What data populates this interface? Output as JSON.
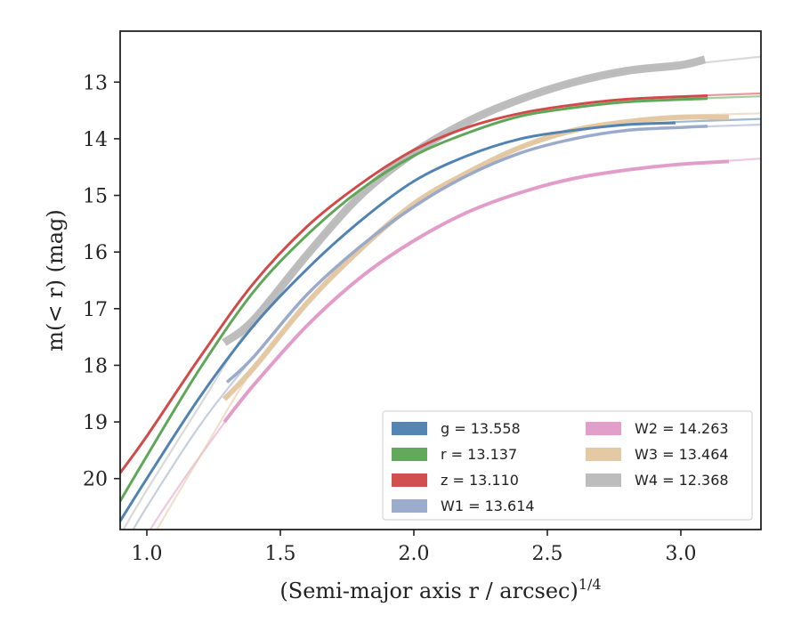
{
  "chart_data": {
    "type": "line",
    "title": "",
    "xlabel_main": "(Semi-major axis r / arcsec)",
    "xlabel_sup": "1/4",
    "ylabel": "m(< r) (mag)",
    "xlim": [
      0.9,
      3.3
    ],
    "ylim": [
      20.9,
      12.1
    ],
    "y_inverted": true,
    "grid": false,
    "legend_placement": "lower-right",
    "xticks": [
      1.0,
      1.5,
      2.0,
      2.5,
      3.0
    ],
    "xtick_labels": [
      "1.0",
      "1.5",
      "2.0",
      "2.5",
      "3.0"
    ],
    "yticks": [
      13,
      14,
      15,
      16,
      17,
      18,
      19,
      20
    ],
    "ytick_labels": [
      "13",
      "14",
      "15",
      "16",
      "17",
      "18",
      "19",
      "20"
    ],
    "series": [
      {
        "name": "g = 13.558",
        "color": "#4c7faf",
        "thin_x": [
          0.9,
          1.0,
          1.2,
          1.4,
          1.6,
          1.8,
          2.0,
          2.2,
          2.4,
          2.6,
          2.8,
          3.0,
          3.3
        ],
        "thin_y": [
          20.75,
          20.0,
          18.55,
          17.3,
          16.3,
          15.45,
          14.75,
          14.3,
          14.0,
          13.85,
          13.75,
          13.7,
          13.65
        ],
        "thick_x": [
          0.9,
          1.0,
          1.2,
          1.4,
          1.6,
          1.8,
          2.0,
          2.2,
          2.4,
          2.6,
          2.8,
          2.98
        ],
        "thick_y": [
          20.75,
          20.0,
          18.55,
          17.3,
          16.3,
          15.45,
          14.75,
          14.3,
          14.0,
          13.85,
          13.75,
          13.72
        ]
      },
      {
        "name": "r = 13.137",
        "color": "#5ba454",
        "thin_x": [
          0.9,
          1.0,
          1.2,
          1.4,
          1.6,
          1.8,
          2.0,
          2.2,
          2.4,
          2.6,
          2.8,
          3.0,
          3.3
        ],
        "thin_y": [
          20.4,
          19.6,
          18.05,
          16.7,
          15.7,
          14.9,
          14.3,
          13.9,
          13.6,
          13.45,
          13.35,
          13.3,
          13.25
        ],
        "thick_x": [
          0.9,
          1.0,
          1.2,
          1.4,
          1.6,
          1.8,
          2.0,
          2.2,
          2.4,
          2.6,
          2.8,
          3.1
        ],
        "thick_y": [
          20.4,
          19.6,
          18.05,
          16.7,
          15.7,
          14.9,
          14.3,
          13.9,
          13.6,
          13.45,
          13.35,
          13.29
        ]
      },
      {
        "name": "z = 13.110",
        "color": "#d04646",
        "thin_x": [
          0.9,
          1.0,
          1.2,
          1.4,
          1.6,
          1.8,
          2.0,
          2.2,
          2.4,
          2.6,
          2.8,
          3.0,
          3.3
        ],
        "thin_y": [
          19.9,
          19.25,
          17.85,
          16.55,
          15.55,
          14.8,
          14.2,
          13.8,
          13.55,
          13.4,
          13.3,
          13.25,
          13.2
        ],
        "thick_x": [
          0.9,
          1.0,
          1.2,
          1.4,
          1.6,
          1.8,
          2.0,
          2.2,
          2.4,
          2.6,
          2.8,
          3.1
        ],
        "thick_y": [
          19.9,
          19.25,
          17.85,
          16.55,
          15.55,
          14.8,
          14.2,
          13.8,
          13.55,
          13.4,
          13.3,
          13.24
        ]
      },
      {
        "name": "W1 = 13.614",
        "color": "#97a8c9",
        "thin_x": [
          0.9,
          1.0,
          1.2,
          1.4,
          1.6,
          1.8,
          2.0,
          2.2,
          2.4,
          2.6,
          2.8,
          3.0,
          3.3
        ],
        "thin_y": [
          21.3,
          20.5,
          19.05,
          17.85,
          16.75,
          15.9,
          15.2,
          14.65,
          14.25,
          14.0,
          13.85,
          13.8,
          13.75
        ],
        "thick_x": [
          1.3,
          1.4,
          1.6,
          1.8,
          2.0,
          2.2,
          2.4,
          2.6,
          2.8,
          3.0,
          3.1
        ],
        "thick_y": [
          18.3,
          17.85,
          16.75,
          15.9,
          15.2,
          14.65,
          14.25,
          14.0,
          13.85,
          13.8,
          13.78
        ]
      },
      {
        "name": "W2 = 14.263",
        "color": "#e09ac7",
        "thin_x": [
          0.9,
          1.0,
          1.2,
          1.4,
          1.6,
          1.8,
          2.0,
          2.2,
          2.4,
          2.6,
          2.8,
          3.0,
          3.3
        ],
        "thin_y": [
          22.0,
          21.0,
          19.6,
          18.35,
          17.3,
          16.45,
          15.8,
          15.3,
          14.95,
          14.7,
          14.55,
          14.45,
          14.35
        ],
        "thick_x": [
          1.29,
          1.4,
          1.6,
          1.8,
          2.0,
          2.2,
          2.4,
          2.6,
          2.8,
          3.0,
          3.18
        ],
        "thick_y": [
          19.0,
          18.35,
          17.3,
          16.45,
          15.8,
          15.3,
          14.95,
          14.7,
          14.55,
          14.45,
          14.4
        ]
      },
      {
        "name": "W3 = 13.464",
        "color": "#e3c6a0",
        "thin_x": [
          0.9,
          1.0,
          1.2,
          1.4,
          1.6,
          1.8,
          2.0,
          2.2,
          2.4,
          2.6,
          2.8,
          3.0,
          3.3
        ],
        "thin_y": [
          22.0,
          21.2,
          19.6,
          18.05,
          16.9,
          15.95,
          15.15,
          14.6,
          14.15,
          13.85,
          13.7,
          13.6,
          13.55
        ],
        "thick_x": [
          1.29,
          1.4,
          1.6,
          1.8,
          2.0,
          2.2,
          2.4,
          2.6,
          2.8,
          3.0,
          3.18
        ],
        "thick_y": [
          18.6,
          18.05,
          16.9,
          15.95,
          15.15,
          14.6,
          14.15,
          13.85,
          13.7,
          13.62,
          13.62
        ]
      },
      {
        "name": "W4 = 12.368",
        "color": "#b9b9b9",
        "thin_x": [
          0.9,
          1.0,
          1.2,
          1.4,
          1.6,
          1.8,
          2.0,
          2.2,
          2.4,
          2.6,
          2.8,
          3.0,
          3.3
        ],
        "thin_y": [
          21.0,
          20.2,
          18.7,
          17.2,
          16.05,
          15.0,
          14.25,
          13.7,
          13.3,
          13.0,
          12.8,
          12.7,
          12.55
        ],
        "thick_x": [
          1.29,
          1.4,
          1.6,
          1.8,
          2.0,
          2.2,
          2.4,
          2.6,
          2.8,
          3.0,
          3.09
        ],
        "thick_y": [
          17.6,
          17.2,
          16.05,
          15.0,
          14.25,
          13.7,
          13.3,
          13.0,
          12.8,
          12.7,
          12.6
        ]
      }
    ],
    "legend_columns": [
      [
        "g = 13.558",
        "r = 13.137",
        "z = 13.110",
        "W1 = 13.614"
      ],
      [
        "W2 = 14.263",
        "W3 = 13.464",
        "W4 = 12.368"
      ]
    ]
  }
}
